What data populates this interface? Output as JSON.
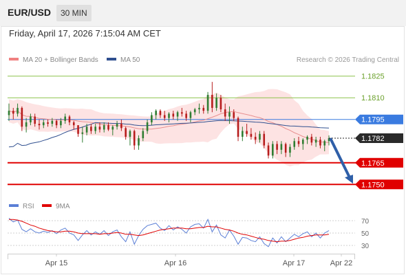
{
  "header": {
    "symbol": "EUR/USD",
    "timeframe": "30 MIN",
    "datetime": "Friday, April 17, 2026 7:15:04 AM CET"
  },
  "legend": {
    "ma20": {
      "label": "MA 20 + Bollinger Bands",
      "color": "#f08080"
    },
    "ma50": {
      "label": "MA 50",
      "color": "#2f4f8f"
    }
  },
  "copyright": "Research © 2026 Trading Central",
  "rsi_legend": {
    "rsi": {
      "label": "RSI",
      "color": "#5b7fd6"
    },
    "ma9": {
      "label": "9MA",
      "color": "#e00000"
    }
  },
  "chart_data": {
    "type": "candlestick",
    "x_ticks": [
      "Apr 15",
      "Apr 16",
      "Apr 17",
      "Apr 22"
    ],
    "y_range": [
      1.1743,
      1.1832
    ],
    "current_price": {
      "value": 1.1782,
      "label": "1.1782"
    },
    "levels": [
      {
        "value": 1.1825,
        "label": "1.1825",
        "kind": "resistance",
        "color": "#8cc24a"
      },
      {
        "value": 1.181,
        "label": "1.1810",
        "kind": "resistance",
        "color": "#8cc24a"
      },
      {
        "value": 1.1795,
        "label": "1.1795",
        "kind": "pivot",
        "color": "#3a7be0"
      },
      {
        "value": 1.1765,
        "label": "1.1765",
        "kind": "support",
        "color": "#e00000"
      },
      {
        "value": 1.175,
        "label": "1.1750",
        "kind": "support",
        "color": "#e00000"
      }
    ],
    "candles": [
      [
        1.1798,
        1.1806,
        1.1794,
        1.1801
      ],
      [
        1.1801,
        1.1803,
        1.1795,
        1.1799
      ],
      [
        1.1799,
        1.1806,
        1.1797,
        1.1803
      ],
      [
        1.1803,
        1.1804,
        1.1787,
        1.179
      ],
      [
        1.179,
        1.1796,
        1.1786,
        1.1793
      ],
      [
        1.1793,
        1.1799,
        1.1791,
        1.1797
      ],
      [
        1.1797,
        1.1799,
        1.179,
        1.1792
      ],
      [
        1.1792,
        1.1795,
        1.1788,
        1.1791
      ],
      [
        1.1791,
        1.1795,
        1.1789,
        1.1793
      ],
      [
        1.1793,
        1.1795,
        1.179,
        1.1792
      ],
      [
        1.1792,
        1.1796,
        1.179,
        1.1794
      ],
      [
        1.1794,
        1.1795,
        1.1789,
        1.1791
      ],
      [
        1.1791,
        1.1796,
        1.1789,
        1.1794
      ],
      [
        1.1794,
        1.1799,
        1.1792,
        1.1797
      ],
      [
        1.1797,
        1.1798,
        1.1791,
        1.1793
      ],
      [
        1.1793,
        1.1794,
        1.1788,
        1.1791
      ],
      [
        1.1791,
        1.1791,
        1.1783,
        1.1785
      ],
      [
        1.1785,
        1.179,
        1.1779,
        1.1786
      ],
      [
        1.1786,
        1.1792,
        1.1784,
        1.179
      ],
      [
        1.179,
        1.1792,
        1.1785,
        1.1787
      ],
      [
        1.1787,
        1.1792,
        1.1785,
        1.179
      ],
      [
        1.179,
        1.1793,
        1.1786,
        1.1788
      ],
      [
        1.1788,
        1.1793,
        1.1786,
        1.1791
      ],
      [
        1.1791,
        1.1793,
        1.1787,
        1.1788
      ],
      [
        1.1788,
        1.1791,
        1.1784,
        1.179
      ],
      [
        1.179,
        1.1794,
        1.1788,
        1.1792
      ],
      [
        1.1792,
        1.1795,
        1.1787,
        1.1789
      ],
      [
        1.1789,
        1.179,
        1.1781,
        1.1783
      ],
      [
        1.1783,
        1.1788,
        1.1777,
        1.1787
      ],
      [
        1.1787,
        1.1788,
        1.1774,
        1.1777
      ],
      [
        1.1777,
        1.1784,
        1.1774,
        1.1782
      ],
      [
        1.1782,
        1.1789,
        1.178,
        1.1787
      ],
      [
        1.1787,
        1.1795,
        1.1785,
        1.1793
      ],
      [
        1.1793,
        1.18,
        1.1791,
        1.1798
      ],
      [
        1.1798,
        1.1802,
        1.1795,
        1.1801
      ],
      [
        1.1801,
        1.1802,
        1.1796,
        1.1798
      ],
      [
        1.1798,
        1.1801,
        1.1794,
        1.1796
      ],
      [
        1.1796,
        1.18,
        1.1793,
        1.1799
      ],
      [
        1.1799,
        1.1801,
        1.1795,
        1.1797
      ],
      [
        1.1797,
        1.1801,
        1.1794,
        1.18
      ],
      [
        1.18,
        1.1803,
        1.1797,
        1.1799
      ],
      [
        1.1799,
        1.1801,
        1.1794,
        1.1796
      ],
      [
        1.1796,
        1.1801,
        1.1793,
        1.18
      ],
      [
        1.18,
        1.1803,
        1.1798,
        1.1802
      ],
      [
        1.1802,
        1.1806,
        1.1799,
        1.1803
      ],
      [
        1.1803,
        1.1805,
        1.1799,
        1.1801
      ],
      [
        1.1801,
        1.1814,
        1.1799,
        1.1812
      ],
      [
        1.1812,
        1.1821,
        1.18,
        1.1803
      ],
      [
        1.1803,
        1.1813,
        1.1801,
        1.181
      ],
      [
        1.181,
        1.1812,
        1.18,
        1.1802
      ],
      [
        1.1802,
        1.1806,
        1.1794,
        1.1797
      ],
      [
        1.1797,
        1.1804,
        1.1792,
        1.18
      ],
      [
        1.18,
        1.1802,
        1.1794,
        1.1796
      ],
      [
        1.1796,
        1.1797,
        1.178,
        1.1783
      ],
      [
        1.1783,
        1.179,
        1.178,
        1.1787
      ],
      [
        1.1787,
        1.1792,
        1.1783,
        1.1785
      ],
      [
        1.1785,
        1.1789,
        1.1781,
        1.1783
      ],
      [
        1.1783,
        1.1786,
        1.1778,
        1.1781
      ],
      [
        1.1781,
        1.1787,
        1.1779,
        1.1785
      ],
      [
        1.1785,
        1.1787,
        1.1775,
        1.1777
      ],
      [
        1.1777,
        1.1779,
        1.1768,
        1.177
      ],
      [
        1.177,
        1.178,
        1.1768,
        1.1778
      ],
      [
        1.1778,
        1.178,
        1.1771,
        1.1774
      ],
      [
        1.1774,
        1.178,
        1.1771,
        1.1778
      ],
      [
        1.1778,
        1.1779,
        1.1769,
        1.1772
      ],
      [
        1.1772,
        1.1778,
        1.1769,
        1.1776
      ],
      [
        1.1776,
        1.1782,
        1.1774,
        1.178
      ],
      [
        1.178,
        1.1783,
        1.1776,
        1.1778
      ],
      [
        1.1778,
        1.1782,
        1.1774,
        1.1781
      ],
      [
        1.1781,
        1.1784,
        1.1778,
        1.1783
      ],
      [
        1.1783,
        1.1785,
        1.1777,
        1.1779
      ],
      [
        1.1779,
        1.1783,
        1.1776,
        1.1781
      ],
      [
        1.1781,
        1.1783,
        1.1775,
        1.1777
      ],
      [
        1.1777,
        1.1781,
        1.1773,
        1.178
      ],
      [
        1.178,
        1.1784,
        1.1777,
        1.1782
      ]
    ],
    "rsi": {
      "ticks": [
        "70",
        "50",
        "30"
      ],
      "range": [
        20,
        80
      ],
      "rsi_values": [
        74,
        68,
        71,
        56,
        52,
        57,
        52,
        50,
        53,
        51,
        54,
        49,
        55,
        58,
        50,
        47,
        38,
        47,
        54,
        47,
        52,
        48,
        54,
        46,
        52,
        55,
        44,
        36,
        52,
        32,
        46,
        56,
        62,
        64,
        66,
        58,
        54,
        62,
        55,
        60,
        56,
        50,
        60,
        64,
        65,
        58,
        72,
        52,
        63,
        47,
        42,
        55,
        45,
        32,
        43,
        42,
        38,
        36,
        44,
        33,
        28,
        42,
        34,
        44,
        36,
        42,
        48,
        44,
        49,
        52,
        44,
        50,
        42,
        50,
        54
      ],
      "ma9_values": [
        72,
        72,
        71,
        69,
        66,
        63,
        61,
        58,
        56,
        54,
        53,
        52,
        52,
        53,
        53,
        52,
        50,
        49,
        49,
        49,
        49,
        48,
        49,
        49,
        50,
        51,
        50,
        48,
        48,
        47,
        46,
        47,
        49,
        51,
        53,
        55,
        56,
        57,
        58,
        58,
        58,
        57,
        57,
        58,
        59,
        59,
        61,
        60,
        60,
        58,
        56,
        55,
        53,
        50,
        48,
        47,
        45,
        43,
        41,
        40,
        38,
        37,
        36,
        37,
        37,
        38,
        40,
        42,
        43,
        45,
        46,
        47,
        47,
        47,
        48
      ]
    },
    "ma20_color": "#e89090",
    "ma50_color": "#2f4f8f",
    "band_color": "#fde0e0",
    "forecast_color": "#2f5fa8"
  }
}
